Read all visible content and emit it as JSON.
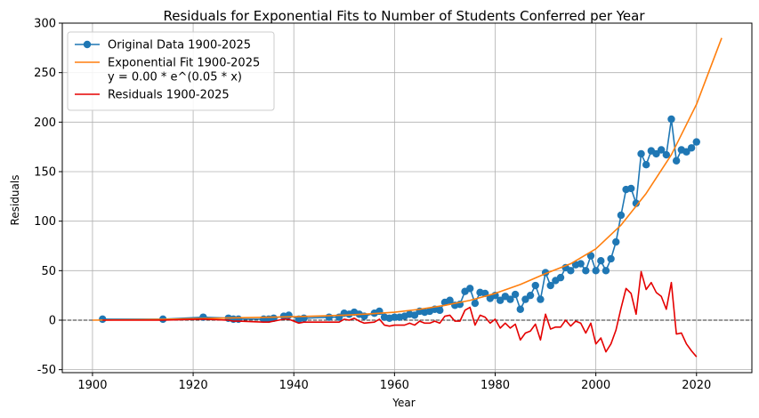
{
  "chart_data": {
    "type": "line",
    "title": "Residuals for Exponential Fits to Number of Students Conferred per Year",
    "xlabel": "Year",
    "ylabel": "Residuals",
    "xlim": [
      1894,
      2031
    ],
    "ylim": [
      -53,
      300
    ],
    "xticks": [
      1900,
      1920,
      1940,
      1960,
      1980,
      2000,
      2020
    ],
    "yticks": [
      -50,
      0,
      50,
      100,
      150,
      200,
      250,
      300
    ],
    "grid": true,
    "legend_position": "top-left",
    "zero_line": true,
    "series": [
      {
        "name": "Original Data 1900-2025",
        "color": "#1f77b4",
        "style": "line-marker",
        "x": [
          1902,
          1914,
          1922,
          1927,
          1928,
          1929,
          1934,
          1935,
          1936,
          1938,
          1939,
          1941,
          1942,
          1947,
          1949,
          1950,
          1951,
          1952,
          1953,
          1954,
          1956,
          1957,
          1958,
          1959,
          1960,
          1961,
          1962,
          1963,
          1964,
          1965,
          1966,
          1967,
          1968,
          1969,
          1970,
          1971,
          1972,
          1973,
          1974,
          1975,
          1976,
          1977,
          1978,
          1979,
          1980,
          1981,
          1982,
          1983,
          1984,
          1985,
          1986,
          1987,
          1988,
          1989,
          1990,
          1991,
          1992,
          1993,
          1994,
          1995,
          1996,
          1997,
          1998,
          1999,
          2000,
          2001,
          2002,
          2003,
          2004,
          2005,
          2006,
          2007,
          2008,
          2009,
          2010,
          2011,
          2012,
          2013,
          2014,
          2015,
          2016,
          2017,
          2018,
          2019,
          2020
        ],
        "y": [
          1,
          1,
          3,
          2,
          1,
          1,
          1,
          1,
          2,
          4,
          5,
          1,
          2,
          3,
          3,
          7,
          6,
          8,
          6,
          4,
          7,
          9,
          3,
          2,
          3,
          3,
          4,
          6,
          5,
          9,
          8,
          9,
          11,
          10,
          18,
          20,
          15,
          16,
          29,
          32,
          17,
          28,
          27,
          22,
          25,
          20,
          24,
          21,
          26,
          11,
          21,
          25,
          35,
          21,
          48,
          35,
          40,
          43,
          53,
          50,
          56,
          57,
          50,
          65,
          50,
          60,
          50,
          62,
          79,
          106,
          132,
          133,
          118,
          168,
          157,
          171,
          168,
          172,
          167,
          203,
          161,
          172,
          170,
          174,
          180
        ]
      },
      {
        "name": "Exponential Fit 1900-2025\ny = 0.00 * e^(0.05 * x)",
        "color": "#ff7f0e",
        "style": "line",
        "x": [
          1900,
          1905,
          1910,
          1915,
          1920,
          1925,
          1930,
          1935,
          1940,
          1945,
          1950,
          1955,
          1960,
          1965,
          1970,
          1975,
          1980,
          1985,
          1990,
          1995,
          2000,
          2005,
          2010,
          2015,
          2020,
          2025
        ],
        "y": [
          0,
          0.3,
          0.5,
          1.0,
          1.5,
          2.0,
          2.5,
          3.0,
          3.5,
          4.2,
          5.0,
          6.3,
          8,
          11,
          15,
          20,
          27,
          36,
          47,
          57,
          72,
          96,
          128,
          167,
          218,
          285
        ]
      },
      {
        "name": "Residuals 1900-2025",
        "color": "#e50000",
        "style": "line",
        "x": [
          1902,
          1914,
          1922,
          1927,
          1928,
          1929,
          1934,
          1935,
          1936,
          1938,
          1939,
          1941,
          1942,
          1947,
          1949,
          1950,
          1951,
          1952,
          1953,
          1954,
          1956,
          1957,
          1958,
          1959,
          1960,
          1961,
          1962,
          1963,
          1964,
          1965,
          1966,
          1967,
          1968,
          1969,
          1970,
          1971,
          1972,
          1973,
          1974,
          1975,
          1976,
          1977,
          1978,
          1979,
          1980,
          1981,
          1982,
          1983,
          1984,
          1985,
          1986,
          1987,
          1988,
          1989,
          1990,
          1991,
          1992,
          1993,
          1994,
          1995,
          1996,
          1997,
          1998,
          1999,
          2000,
          2001,
          2002,
          2003,
          2004,
          2005,
          2006,
          2007,
          2008,
          2009,
          2010,
          2011,
          2012,
          2013,
          2014,
          2015,
          2016,
          2017,
          2018,
          2019,
          2020
        ],
        "y": [
          0,
          0,
          1,
          0,
          -1,
          -1,
          -2,
          -2,
          -1,
          1,
          1,
          -3,
          -2,
          -2,
          -2,
          1,
          0,
          2,
          -1,
          -3,
          -2,
          1,
          -5,
          -6,
          -5,
          -5,
          -5,
          -3,
          -5,
          -1,
          -3,
          -3,
          -1,
          -3,
          4,
          5,
          -1,
          -1,
          10,
          13,
          -5,
          5,
          3,
          -3,
          1,
          -8,
          -3,
          -8,
          -4,
          -20,
          -13,
          -11,
          -4,
          -20,
          6,
          -9,
          -7,
          -7,
          0,
          -6,
          -1,
          -3,
          -13,
          -3,
          -24,
          -18,
          -32,
          -24,
          -10,
          12,
          32,
          27,
          6,
          49,
          31,
          38,
          28,
          24,
          11,
          38,
          -14,
          -13,
          -24,
          -31,
          -37
        ]
      }
    ]
  }
}
